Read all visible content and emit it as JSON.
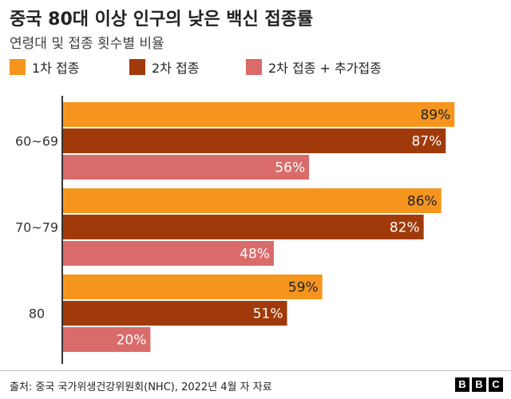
{
  "title": "중국 80대 이상 인구의 낮은 백신 접종률",
  "subtitle": "연령대 및 접종 횟수별 비율",
  "colors": {
    "dose1": "#f6951e",
    "dose2": "#a13a0a",
    "booster": "#da6b6b",
    "axis": "#333333",
    "label_light": "#ffffff",
    "label_dark": "#222222"
  },
  "chart_data": {
    "type": "bar",
    "orientation": "horizontal",
    "title": "중국 80대 이상 인구의 낮은 백신 접종률",
    "subtitle": "연령대 및 접종 횟수별 비율",
    "categories": [
      "60~69",
      "70~79",
      "80"
    ],
    "series": [
      {
        "name": "1차 접종",
        "values": [
          89,
          86,
          59
        ],
        "color": "#f6951e",
        "label_color": "#222222"
      },
      {
        "name": "2차 접종",
        "values": [
          87,
          82,
          51
        ],
        "color": "#a13a0a",
        "label_color": "#ffffff"
      },
      {
        "name": "2차 접종 + 추가접종",
        "values": [
          56,
          48,
          20
        ],
        "color": "#da6b6b",
        "label_color": "#ffffff"
      }
    ],
    "value_suffix": "%",
    "xlim": [
      0,
      100
    ],
    "grid": false,
    "legend_position": "top-left"
  },
  "source": "출처: 중국 국가위생건강위원회(NHC), 2022년 4월 자 자료",
  "logo": [
    "B",
    "B",
    "C"
  ]
}
